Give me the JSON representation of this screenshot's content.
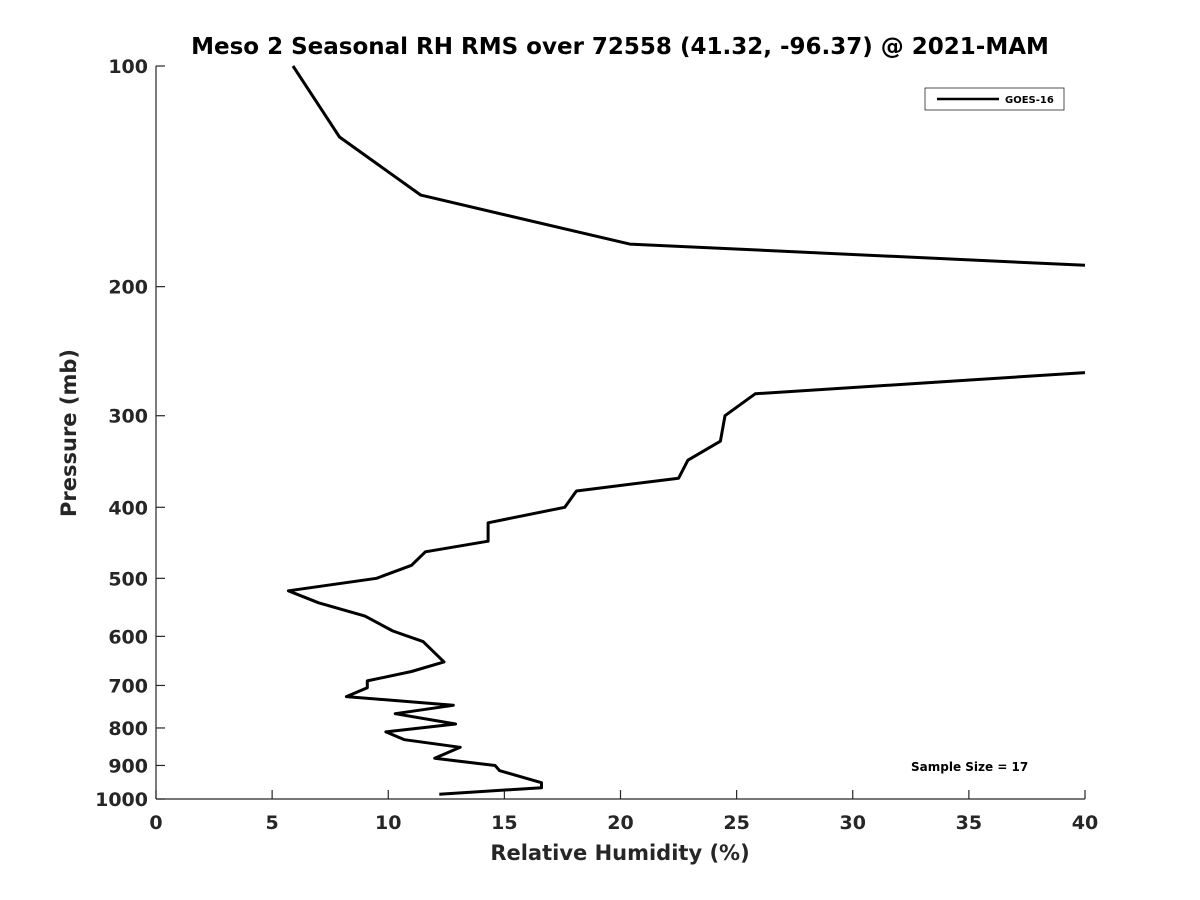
{
  "chart_data": {
    "type": "line",
    "title": "Meso 2 Seasonal RH RMS over 72558 (41.32, -96.37) @ 2021-MAM",
    "xlabel": "Relative Humidity (%)",
    "ylabel": "Pressure (mb)",
    "xlim": [
      0,
      40
    ],
    "ylim": [
      100,
      1000
    ],
    "y_scale": "log",
    "y_reversed": true,
    "x_ticks": [
      "0",
      "5",
      "10",
      "15",
      "20",
      "25",
      "30",
      "35",
      "40"
    ],
    "y_ticks": [
      "100",
      "200",
      "300",
      "400",
      "500",
      "600",
      "700",
      "800",
      "900",
      "1000"
    ],
    "grid": false,
    "legend_position": "top-right",
    "annotation": "Sample Size = 17",
    "series": [
      {
        "name": "GOES-16",
        "color": "#000000",
        "segments": [
          {
            "x": [
              5.9,
              7.9,
              11.4,
              20.4,
              40.0
            ],
            "y": [
              100,
              125,
              150,
              175,
              187
            ]
          },
          {
            "x": [
              40.0,
              25.8,
              24.5,
              24.3,
              22.9,
              22.5,
              18.1,
              17.6,
              14.3,
              14.3,
              11.6,
              11.0,
              9.5,
              5.7,
              7.0,
              9.0,
              10.2,
              11.5,
              12.4,
              11.0,
              9.1,
              9.1,
              8.2,
              12.8,
              10.3,
              12.9,
              9.9,
              10.7,
              13.1,
              12.0,
              14.6,
              14.8,
              16.6,
              16.6,
              12.2
            ],
            "y": [
              262,
              280,
              300,
              325,
              345,
              365,
              380,
              400,
              420,
              445,
              460,
              480,
              500,
              520,
              540,
              563,
              590,
              610,
              650,
              670,
              690,
              705,
              725,
              745,
              765,
              790,
              810,
              830,
              850,
              880,
              900,
              915,
              950,
              965,
              985
            ]
          }
        ]
      }
    ]
  }
}
